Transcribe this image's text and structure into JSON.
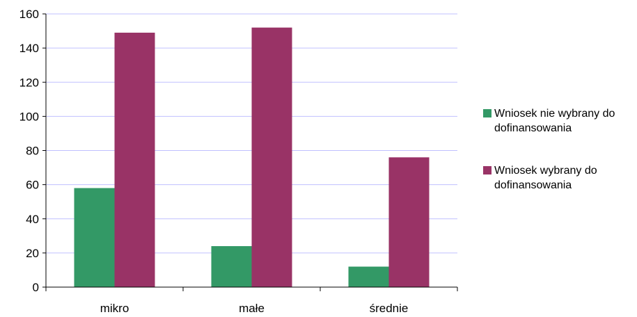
{
  "chart_data": {
    "type": "bar",
    "title": "",
    "xlabel": "",
    "ylabel": "",
    "categories": [
      "mikro",
      "małe",
      "średnie"
    ],
    "series": [
      {
        "name": "Wniosek nie wybrany do dofinansowania",
        "color": "#339966",
        "values": [
          58,
          24,
          12
        ]
      },
      {
        "name": "Wniosek wybrany do dofinansowania",
        "color": "#993366",
        "values": [
          149,
          152,
          76
        ]
      }
    ],
    "ylim": [
      0,
      160
    ],
    "yticks": [
      "0",
      "20",
      "40",
      "60",
      "80",
      "100",
      "120",
      "140",
      "160"
    ],
    "grid": true,
    "gridColor": "#c0c0ff",
    "legend_position": "right"
  }
}
